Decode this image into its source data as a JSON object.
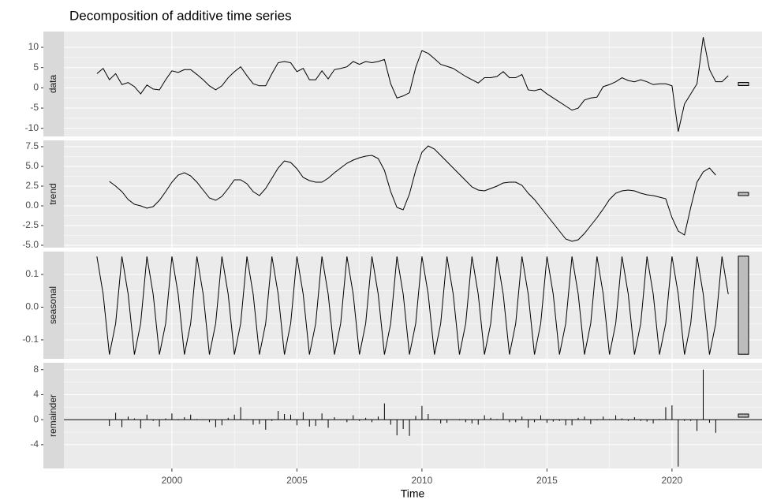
{
  "chart_data": {
    "type": "facet",
    "title": "Decomposition of additive time series",
    "x_label": "Time",
    "x": [
      1997,
      1997.25,
      1997.5,
      1997.75,
      1998,
      1998.25,
      1998.5,
      1998.75,
      1999,
      1999.25,
      1999.5,
      1999.75,
      2000,
      2000.25,
      2000.5,
      2000.75,
      2001,
      2001.25,
      2001.5,
      2001.75,
      2002,
      2002.25,
      2002.5,
      2002.75,
      2003,
      2003.25,
      2003.5,
      2003.75,
      2004,
      2004.25,
      2004.5,
      2004.75,
      2005,
      2005.25,
      2005.5,
      2005.75,
      2006,
      2006.25,
      2006.5,
      2006.75,
      2007,
      2007.25,
      2007.5,
      2007.75,
      2008,
      2008.25,
      2008.5,
      2008.75,
      2009,
      2009.25,
      2009.5,
      2009.75,
      2010,
      2010.25,
      2010.5,
      2010.75,
      2011,
      2011.25,
      2011.5,
      2011.75,
      2012,
      2012.25,
      2012.5,
      2012.75,
      2013,
      2013.25,
      2013.5,
      2013.75,
      2014,
      2014.25,
      2014.5,
      2014.75,
      2015,
      2015.25,
      2015.5,
      2015.75,
      2016,
      2016.25,
      2016.5,
      2016.75,
      2017,
      2017.25,
      2017.5,
      2017.75,
      2018,
      2018.25,
      2018.5,
      2018.75,
      2019,
      2019.25,
      2019.5,
      2019.75,
      2020,
      2020.25,
      2020.5,
      2020.75,
      2021,
      2021.25,
      2021.5,
      2021.75,
      2022,
      2022.25
    ],
    "xlim": [
      1995.68,
      2023.6
    ],
    "xticks": [
      2000,
      2005,
      2010,
      2015,
      2020
    ],
    "grid": true,
    "panels": [
      {
        "type": "line",
        "label": "data",
        "color": "#000000",
        "ylim": [
          -12,
          13.9
        ],
        "yticks": [
          -10,
          -5,
          0,
          5,
          10
        ],
        "values": [
          3.5,
          4.8,
          2,
          3.5,
          0.8,
          1.3,
          0.3,
          -1.5,
          0.7,
          -0.3,
          -0.5,
          2,
          4.2,
          3.8,
          4.5,
          4.5,
          3.3,
          2,
          0.5,
          -0.5,
          0.5,
          2.5,
          4,
          5.2,
          3,
          1,
          0.5,
          0.5,
          3.5,
          6.2,
          6.5,
          6.2,
          4,
          4.8,
          2,
          2,
          4.2,
          2.2,
          4.5,
          4.8,
          5.2,
          6.5,
          5.8,
          6.5,
          6.2,
          6.5,
          7,
          1,
          -2.5,
          -2,
          -1.2,
          5,
          9.2,
          8.5,
          7.2,
          5.8,
          5.3,
          4.8,
          3.8,
          2.8,
          2,
          1.2,
          2.5,
          2.5,
          2.8,
          4,
          2.5,
          2.5,
          3.3,
          -0.5,
          -0.7,
          -0.3,
          -1.5,
          -2.5,
          -3.5,
          -4.5,
          -5.5,
          -5,
          -3,
          -2.5,
          -2.3,
          0.3,
          0.8,
          1.5,
          2.5,
          1.8,
          1.5,
          2,
          1.5,
          0.8,
          1,
          1,
          0.5,
          -10.8,
          -4,
          -1.5,
          1,
          12.5,
          4.5,
          1.5,
          1.5,
          3
        ]
      },
      {
        "type": "line",
        "label": "trend",
        "color": "#000000",
        "ylim": [
          -5.3,
          8.3
        ],
        "yticks": [
          {
            "value": -5,
            "label": "-5.0"
          },
          -2.5,
          {
            "value": 0,
            "label": "0.0"
          },
          2.5,
          {
            "value": 5,
            "label": "5.0"
          },
          7.5
        ],
        "values": [
          null,
          null,
          3.1,
          2.5,
          1.8,
          0.8,
          0.2,
          0,
          -0.3,
          -0.1,
          0.7,
          1.8,
          3,
          3.9,
          4.2,
          3.8,
          3,
          2,
          1,
          0.7,
          1.2,
          2.2,
          3.3,
          3.3,
          2.8,
          1.8,
          1.3,
          2.2,
          3.5,
          4.8,
          5.7,
          5.5,
          4.7,
          3.6,
          3.2,
          3,
          3,
          3.5,
          4.2,
          4.8,
          5.4,
          5.8,
          6.1,
          6.3,
          6.4,
          6,
          4.5,
          1.8,
          -0.2,
          -0.5,
          1.5,
          4.5,
          6.8,
          7.6,
          7.2,
          6.4,
          5.6,
          4.8,
          4,
          3.2,
          2.4,
          2,
          1.9,
          2.2,
          2.5,
          2.9,
          3,
          3,
          2.6,
          1.6,
          0.8,
          -0.2,
          -1.2,
          -2.2,
          -3.2,
          -4.2,
          -4.5,
          -4.3,
          -3.5,
          -2.5,
          -1.5,
          -0.4,
          0.8,
          1.6,
          1.9,
          2,
          1.9,
          1.6,
          1.4,
          1.3,
          1.1,
          0.9,
          -1.5,
          -3.2,
          -3.7,
          -0.2,
          3,
          4.3,
          4.8,
          3.9,
          null,
          null
        ]
      },
      {
        "type": "line",
        "label": "seasonal",
        "color": "#000000",
        "ylim": [
          -0.158,
          0.17
        ],
        "yticks": [
          -0.1,
          {
            "value": 0,
            "label": "0.0"
          },
          0.1
        ],
        "values": [
          0.155,
          0.04,
          -0.145,
          -0.05,
          0.155,
          0.04,
          -0.145,
          -0.05,
          0.155,
          0.04,
          -0.145,
          -0.05,
          0.155,
          0.04,
          -0.145,
          -0.05,
          0.155,
          0.04,
          -0.145,
          -0.05,
          0.155,
          0.04,
          -0.145,
          -0.05,
          0.155,
          0.04,
          -0.145,
          -0.05,
          0.155,
          0.04,
          -0.145,
          -0.05,
          0.155,
          0.04,
          -0.145,
          -0.05,
          0.155,
          0.04,
          -0.145,
          -0.05,
          0.155,
          0.04,
          -0.145,
          -0.05,
          0.155,
          0.04,
          -0.145,
          -0.05,
          0.155,
          0.04,
          -0.145,
          -0.05,
          0.155,
          0.04,
          -0.145,
          -0.05,
          0.155,
          0.04,
          -0.145,
          -0.05,
          0.155,
          0.04,
          -0.145,
          -0.05,
          0.155,
          0.04,
          -0.145,
          -0.05,
          0.155,
          0.04,
          -0.145,
          -0.05,
          0.155,
          0.04,
          -0.145,
          -0.05,
          0.155,
          0.04,
          -0.145,
          -0.05,
          0.155,
          0.04,
          -0.145,
          -0.05,
          0.155,
          0.04,
          -0.145,
          -0.05,
          0.155,
          0.04,
          -0.145,
          -0.05,
          0.155,
          0.04,
          -0.145,
          -0.05,
          0.155,
          0.04,
          -0.145,
          -0.05,
          0.155,
          0.04
        ]
      },
      {
        "type": "bar",
        "label": "remainder",
        "color": "#000000",
        "ylim": [
          -7.8,
          9.1
        ],
        "yticks": [
          -4,
          0,
          4,
          8
        ],
        "values": [
          null,
          null,
          -1.0,
          1.1,
          -1.2,
          0.5,
          0.2,
          -1.4,
          0.8,
          -0.2,
          -1.1,
          0.2,
          1,
          -0.1,
          0.4,
          0.8,
          0.1,
          0,
          -0.4,
          -1.2,
          -0.9,
          0.3,
          0.8,
          2,
          0,
          -0.8,
          -0.7,
          -1.6,
          -0.2,
          1.4,
          0.9,
          0.8,
          -0.9,
          1.2,
          -1.1,
          -1,
          1,
          -1.3,
          0.4,
          0,
          -0.4,
          0.7,
          -0.2,
          0.3,
          -0.4,
          0.5,
          2.6,
          -0.8,
          -2.5,
          -1.5,
          -2.6,
          0.6,
          2.2,
          0.9,
          0.1,
          -0.6,
          -0.5,
          0,
          -0.1,
          -0.4,
          -0.6,
          -0.8,
          0.7,
          0.3,
          0.1,
          1.1,
          -0.4,
          -0.4,
          0.5,
          -1.3,
          -0.4,
          0.7,
          -0.5,
          -0.3,
          -0.2,
          -0.9,
          -0.9,
          0.3,
          0.5,
          -0.7,
          -0.1,
          0.5,
          0.1,
          0.7,
          0.2,
          -0.2,
          0.4,
          -0.2,
          -0.3,
          -0.6,
          0.1,
          2.0,
          2.3,
          -7.5,
          -0.2,
          -0.2,
          -1.8,
          8,
          -0.5,
          -2.1,
          null,
          null
        ]
      }
    ]
  }
}
